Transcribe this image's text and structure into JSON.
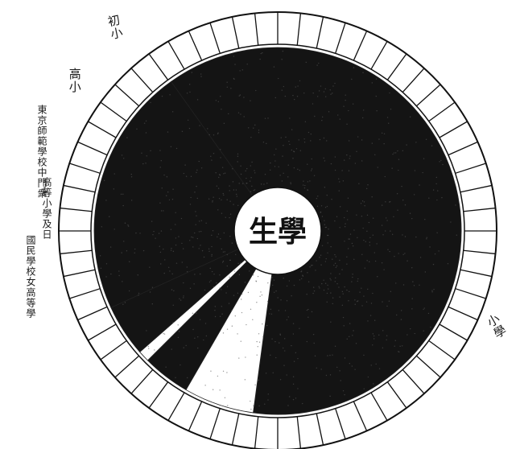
{
  "chart_data": {
    "type": "pie",
    "title": "生學",
    "categories": [
      "高小",
      "東京師範學校中門衆",
      "高等小學及日",
      "國民學校女高等學",
      "初小",
      "小學"
    ],
    "values": [
      62.0,
      6.2,
      4.2,
      1.0,
      4.6,
      22.0
    ],
    "tick_count": 60
  },
  "colors": {
    "background": "#ffffff",
    "slice_fill": "#141414",
    "slice_light": "#ffffff",
    "ring": "#111111"
  }
}
